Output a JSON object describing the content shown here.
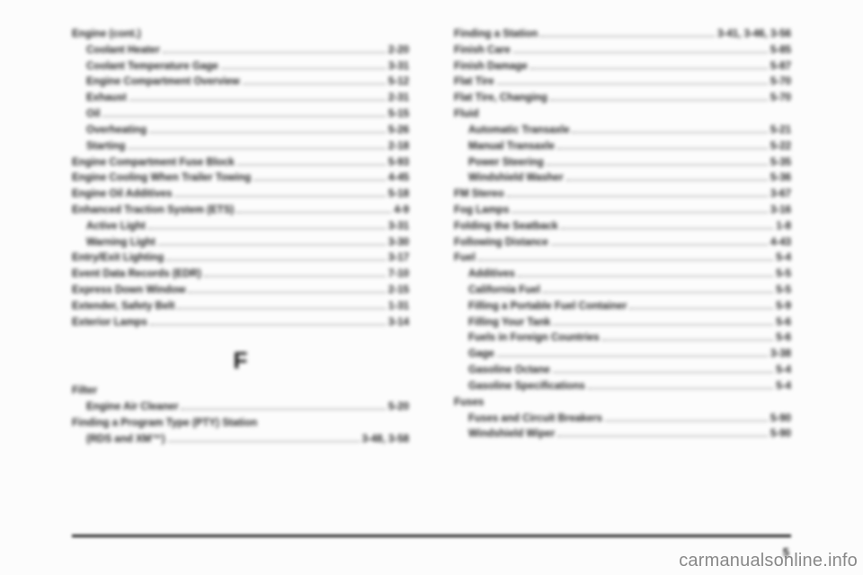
{
  "pageNumber": "5",
  "watermark": "carmanualsonline.info",
  "left": {
    "groups": [
      {
        "entries": [
          {
            "label": "Engine (cont.)",
            "page": "",
            "nodots": true
          },
          {
            "label": "Coolant Heater",
            "page": "2-20",
            "sub": true
          },
          {
            "label": "Coolant Temperature Gage",
            "page": "3-31",
            "sub": true
          },
          {
            "label": "Engine Compartment Overview",
            "page": "5-12",
            "sub": true
          },
          {
            "label": "Exhaust",
            "page": "2-31",
            "sub": true
          },
          {
            "label": "Oil",
            "page": "5-15",
            "sub": true
          },
          {
            "label": "Overheating",
            "page": "5-26",
            "sub": true
          },
          {
            "label": "Starting",
            "page": "2-18",
            "sub": true
          },
          {
            "label": "Engine Compartment Fuse Block",
            "page": "5-93"
          },
          {
            "label": "Engine Cooling When Trailer Towing",
            "page": "4-45"
          },
          {
            "label": "Engine Oil Additives",
            "page": "5-18"
          },
          {
            "label": "Enhanced Traction System (ETS)",
            "page": "4-9"
          },
          {
            "label": "Active Light",
            "page": "3-31",
            "sub": true
          },
          {
            "label": "Warning Light",
            "page": "3-30",
            "sub": true
          },
          {
            "label": "Entry/Exit Lighting",
            "page": "3-17"
          },
          {
            "label": "Event Data Records (EDR)",
            "page": "7-10"
          },
          {
            "label": "Express Down Window",
            "page": "2-15"
          },
          {
            "label": "Extender, Safety Belt",
            "page": "1-31"
          },
          {
            "label": "Exterior Lamps",
            "page": "3-14"
          }
        ]
      },
      {
        "head": "F",
        "entries": [
          {
            "label": "Filter",
            "page": "",
            "nodots": true
          },
          {
            "label": "Engine Air Cleaner",
            "page": "5-20",
            "sub": true
          },
          {
            "label": "Finding a Program Type (PTY) Station",
            "page": "",
            "nodots": true
          },
          {
            "label": "(RDS and XM™)",
            "page": "3-48, 3-58",
            "sub": true
          }
        ]
      }
    ]
  },
  "right": {
    "groups": [
      {
        "entries": [
          {
            "label": "Finding a Station",
            "page": "3-41, 3-46, 3-56"
          },
          {
            "label": "Finish Care",
            "page": "5-85"
          },
          {
            "label": "Finish Damage",
            "page": "5-87"
          },
          {
            "label": "Flat Tire",
            "page": "5-70"
          },
          {
            "label": "Flat Tire, Changing",
            "page": "5-70"
          },
          {
            "label": "Fluid",
            "page": "",
            "nodots": true
          },
          {
            "label": "Automatic Transaxle",
            "page": "5-21",
            "sub": true
          },
          {
            "label": "Manual Transaxle",
            "page": "5-22",
            "sub": true
          },
          {
            "label": "Power Steering",
            "page": "5-35",
            "sub": true
          },
          {
            "label": "Windshield Washer",
            "page": "5-36",
            "sub": true
          },
          {
            "label": "FM Stereo",
            "page": "3-67"
          },
          {
            "label": "Fog Lamps",
            "page": "3-16"
          },
          {
            "label": "Folding the Seatback",
            "page": "1-8"
          },
          {
            "label": "Following Distance",
            "page": "4-43"
          },
          {
            "label": "Fuel",
            "page": "5-4"
          },
          {
            "label": "Additives",
            "page": "5-5",
            "sub": true
          },
          {
            "label": "California Fuel",
            "page": "5-5",
            "sub": true
          },
          {
            "label": "Filling a Portable Fuel Container",
            "page": "5-9",
            "sub": true
          },
          {
            "label": "Filling Your Tank",
            "page": "5-6",
            "sub": true
          },
          {
            "label": "Fuels in Foreign Countries",
            "page": "5-6",
            "sub": true
          },
          {
            "label": "Gage",
            "page": "3-38",
            "sub": true
          },
          {
            "label": "Gasoline Octane",
            "page": "5-4",
            "sub": true
          },
          {
            "label": "Gasoline Specifications",
            "page": "5-4",
            "sub": true
          },
          {
            "label": "Fuses",
            "page": "",
            "nodots": true
          },
          {
            "label": "Fuses and Circuit Breakers",
            "page": "5-90",
            "sub": true
          },
          {
            "label": "Windshield Wiper",
            "page": "5-90",
            "sub": true
          }
        ]
      }
    ]
  }
}
